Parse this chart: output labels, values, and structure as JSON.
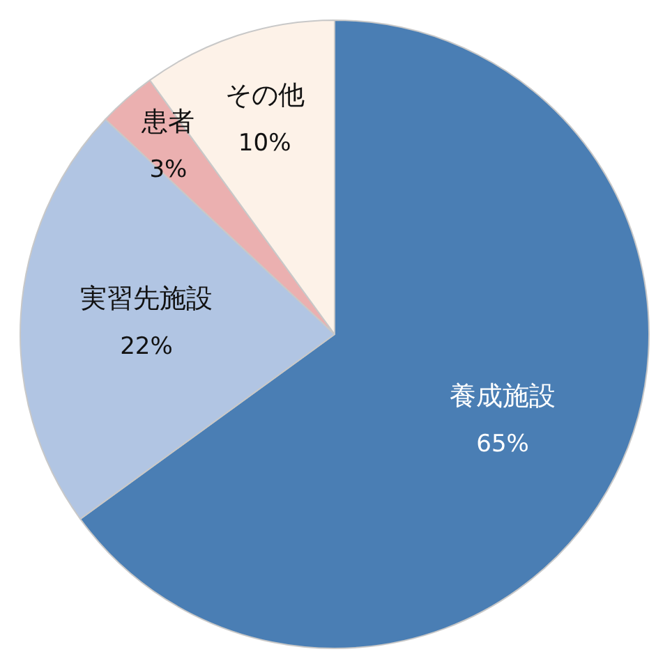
{
  "chart_data": {
    "type": "pie",
    "categories": [
      "養成施設",
      "実習先施設",
      "患者",
      "その他"
    ],
    "values": [
      65,
      22,
      3,
      10
    ],
    "colors": [
      "#4a7eb4",
      "#b1c5e3",
      "#ebb0b0",
      "#fdf2e8"
    ],
    "value_labels": [
      "65%",
      "22%",
      "3%",
      "10%"
    ],
    "legend": false
  }
}
